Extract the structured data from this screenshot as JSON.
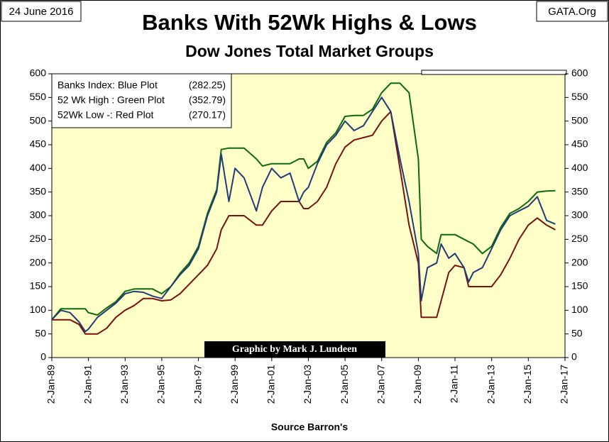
{
  "chart_data": {
    "type": "line",
    "title": "Banks With 52Wk Highs & Lows",
    "subtitle": "Dow Jones Total Market Groups",
    "date_label": "24 June 2016",
    "source_site": "GATA.Org",
    "credit": "Graphic by Mark J. Lundeen",
    "x_label": "Source Barron's",
    "background": "#ffffc8",
    "grid": false,
    "legend_position": "upper left",
    "x": [
      "1989-01-01",
      "1989-07-01",
      "1990-01-01",
      "1990-07-01",
      "1990-11-01",
      "1991-01-01",
      "1991-07-01",
      "1992-01-01",
      "1992-07-01",
      "1993-01-01",
      "1993-07-01",
      "1994-01-01",
      "1994-07-01",
      "1995-01-01",
      "1995-07-01",
      "1996-01-01",
      "1996-07-01",
      "1997-01-01",
      "1997-07-01",
      "1998-01-01",
      "1998-04-01",
      "1998-09-01",
      "1999-01-01",
      "1999-07-01",
      "2000-03-01",
      "2000-07-01",
      "2001-01-01",
      "2001-07-01",
      "2002-01-01",
      "2002-07-01",
      "2002-10-01",
      "2003-01-01",
      "2003-07-01",
      "2004-01-01",
      "2004-07-01",
      "2005-01-01",
      "2005-07-01",
      "2006-01-01",
      "2006-07-01",
      "2007-01-01",
      "2007-07-01",
      "2008-01-01",
      "2008-07-01",
      "2009-01-01",
      "2009-03-01",
      "2009-07-01",
      "2010-01-01",
      "2010-04-01",
      "2010-09-01",
      "2011-01-01",
      "2011-07-01",
      "2011-10-01",
      "2012-01-01",
      "2012-07-01",
      "2013-01-01",
      "2013-07-01",
      "2014-01-01",
      "2014-07-01",
      "2015-01-01",
      "2015-07-01",
      "2016-01-01",
      "2016-06-24"
    ],
    "series": [
      {
        "name": "Banks Index: Blue Plot",
        "latest": "(282.25)",
        "color": "#1f3b78",
        "values": [
          80,
          100,
          95,
          75,
          55,
          60,
          85,
          100,
          115,
          135,
          140,
          138,
          130,
          125,
          150,
          175,
          195,
          230,
          300,
          350,
          430,
          330,
          400,
          380,
          310,
          360,
          400,
          380,
          390,
          330,
          350,
          360,
          410,
          450,
          470,
          500,
          480,
          490,
          520,
          550,
          520,
          420,
          330,
          220,
          120,
          190,
          200,
          240,
          210,
          220,
          190,
          160,
          180,
          190,
          230,
          270,
          300,
          310,
          320,
          340,
          290,
          282.25
        ]
      },
      {
        "name": "52 Wk High : Green Plot",
        "latest": "(352.79)",
        "color": "#0b6b0b",
        "values": [
          80,
          103,
          103,
          103,
          103,
          95,
          90,
          105,
          118,
          140,
          145,
          145,
          145,
          135,
          150,
          178,
          200,
          235,
          305,
          355,
          440,
          443,
          443,
          443,
          420,
          405,
          410,
          410,
          410,
          420,
          420,
          400,
          415,
          455,
          475,
          510,
          512,
          512,
          525,
          560,
          580,
          580,
          560,
          420,
          250,
          235,
          220,
          260,
          260,
          260,
          250,
          245,
          240,
          220,
          235,
          275,
          305,
          315,
          330,
          350,
          352,
          352.79
        ]
      },
      {
        "name": "52Wk Low -: Red Plot",
        "latest": "(270.17)",
        "color": "#7a1010",
        "values": [
          80,
          80,
          80,
          70,
          50,
          50,
          50,
          62,
          85,
          100,
          110,
          125,
          125,
          120,
          122,
          135,
          155,
          175,
          195,
          230,
          270,
          300,
          300,
          300,
          280,
          280,
          310,
          330,
          330,
          330,
          315,
          315,
          330,
          360,
          410,
          445,
          460,
          465,
          470,
          500,
          520,
          400,
          280,
          200,
          85,
          85,
          85,
          120,
          180,
          195,
          190,
          150,
          150,
          150,
          150,
          175,
          210,
          250,
          280,
          295,
          280,
          270.17
        ]
      }
    ],
    "xlim": [
      "1989-01-02",
      "2017-01-02"
    ],
    "xticks": [
      {
        "value": "1989-01-02",
        "label": "2-Jan-89"
      },
      {
        "value": "1991-01-02",
        "label": "2-Jan-91"
      },
      {
        "value": "1993-01-02",
        "label": "2-Jan-93"
      },
      {
        "value": "1995-01-02",
        "label": "2-Jan-95"
      },
      {
        "value": "1997-01-02",
        "label": "2-Jan-97"
      },
      {
        "value": "1999-01-02",
        "label": "2-Jan-99"
      },
      {
        "value": "2001-01-02",
        "label": "2-Jan-01"
      },
      {
        "value": "2003-01-02",
        "label": "2-Jan-03"
      },
      {
        "value": "2005-01-02",
        "label": "2-Jan-05"
      },
      {
        "value": "2007-01-02",
        "label": "2-Jan-07"
      },
      {
        "value": "2009-01-02",
        "label": "2-Jan-09"
      },
      {
        "value": "2011-01-02",
        "label": "2-Jan-11"
      },
      {
        "value": "2013-01-02",
        "label": "2-Jan-13"
      },
      {
        "value": "2015-01-02",
        "label": "2-Jan-15"
      },
      {
        "value": "2017-01-02",
        "label": "2-Jan-17"
      }
    ],
    "ylim": [
      0,
      600
    ],
    "yticks": [
      0,
      50,
      100,
      150,
      200,
      250,
      300,
      350,
      400,
      450,
      500,
      550,
      600
    ],
    "y2lim": [
      0,
      600
    ],
    "y2ticks": [
      0,
      50,
      100,
      150,
      200,
      250,
      300,
      350,
      400,
      450,
      500,
      550,
      600
    ]
  }
}
